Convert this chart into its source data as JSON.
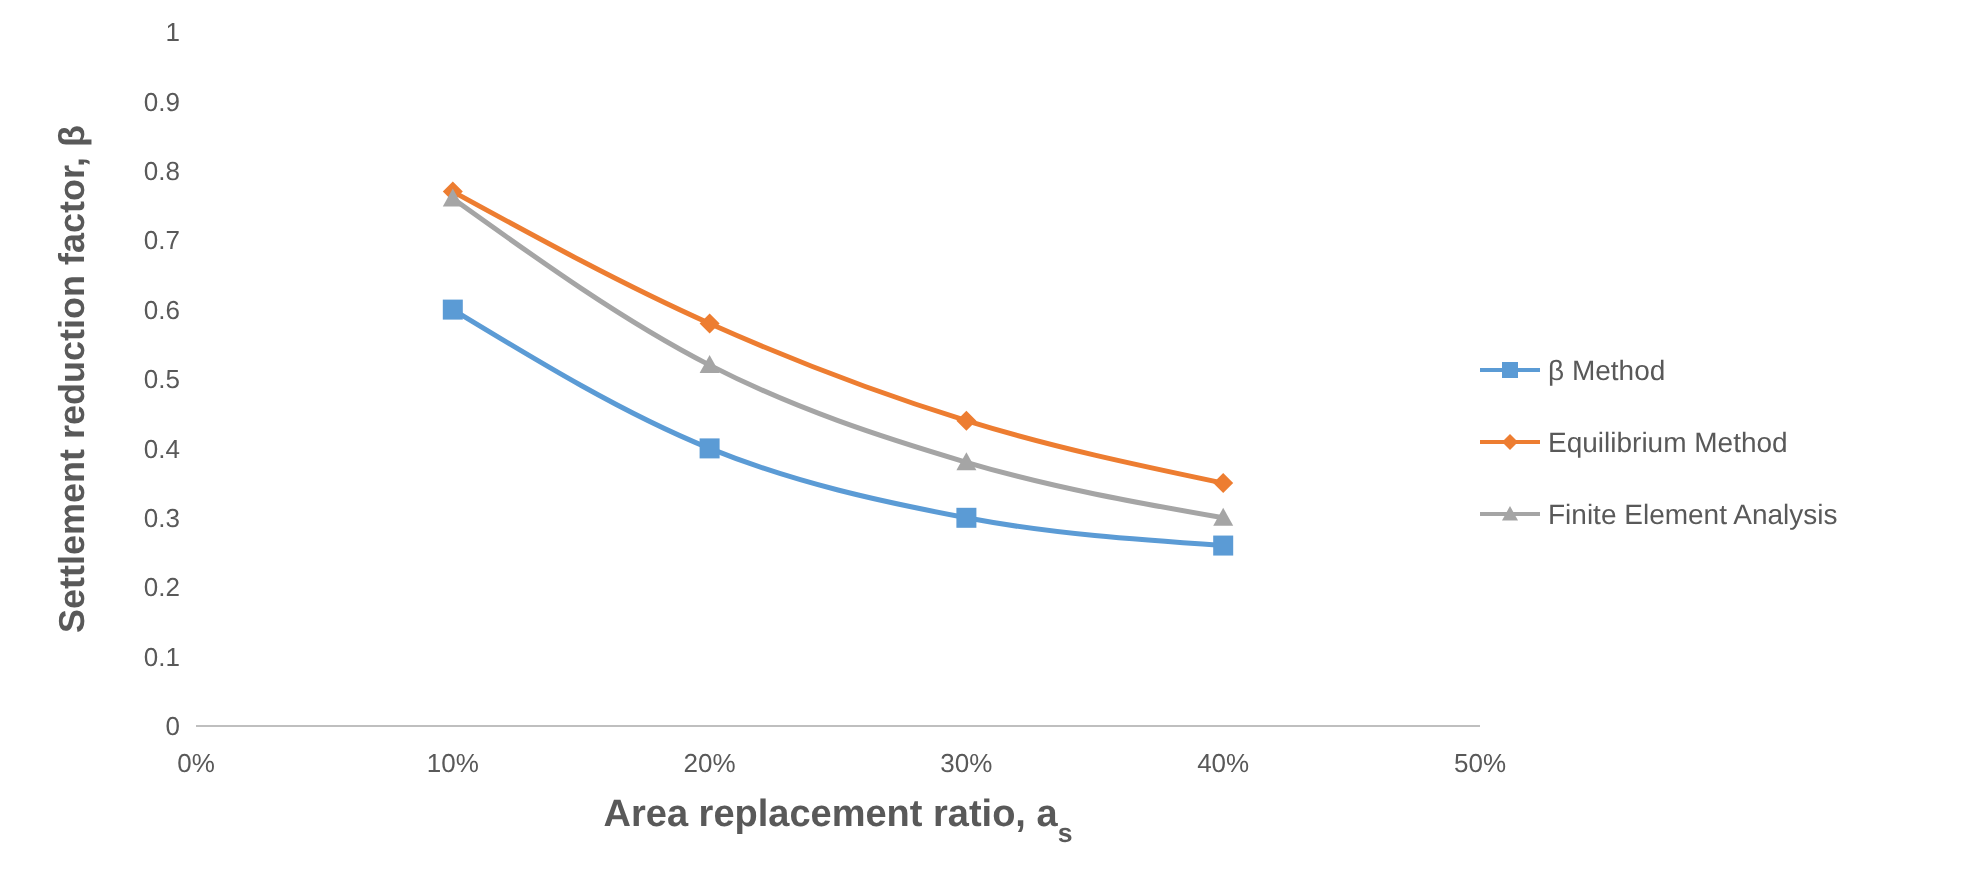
{
  "chart_data": {
    "type": "line",
    "xlabel": "Area replacement ratio, a$_{s}$",
    "ylabel": "Settlement reduction factor, β",
    "x": [
      0.1,
      0.2,
      0.3,
      0.4
    ],
    "series": [
      {
        "name": "β Method",
        "color": "#5b9bd5",
        "marker": "square",
        "values": [
          0.6,
          0.4,
          0.3,
          0.26
        ]
      },
      {
        "name": "Equilibrium Method",
        "color": "#ed7d31",
        "marker": "diamond",
        "values": [
          0.77,
          0.58,
          0.44,
          0.35
        ]
      },
      {
        "name": "Finite Element Analysis",
        "color": "#a5a5a5",
        "marker": "triangle",
        "values": [
          0.76,
          0.52,
          0.38,
          0.3
        ]
      }
    ],
    "xlim": [
      0,
      0.5
    ],
    "xticks": [
      {
        "value": 0,
        "label": "0%"
      },
      {
        "value": 0.1,
        "label": "10%"
      },
      {
        "value": 0.2,
        "label": "20%"
      },
      {
        "value": 0.3,
        "label": "30%"
      },
      {
        "value": 0.4,
        "label": "40%"
      },
      {
        "value": 0.5,
        "label": "50%"
      }
    ],
    "ylim": [
      0,
      1
    ],
    "yticks": [
      0,
      0.1,
      0.2,
      0.3,
      0.4,
      0.5,
      0.6,
      0.7,
      0.8,
      0.9,
      1
    ],
    "grid": false,
    "legend": "right",
    "line_style": "solid"
  }
}
